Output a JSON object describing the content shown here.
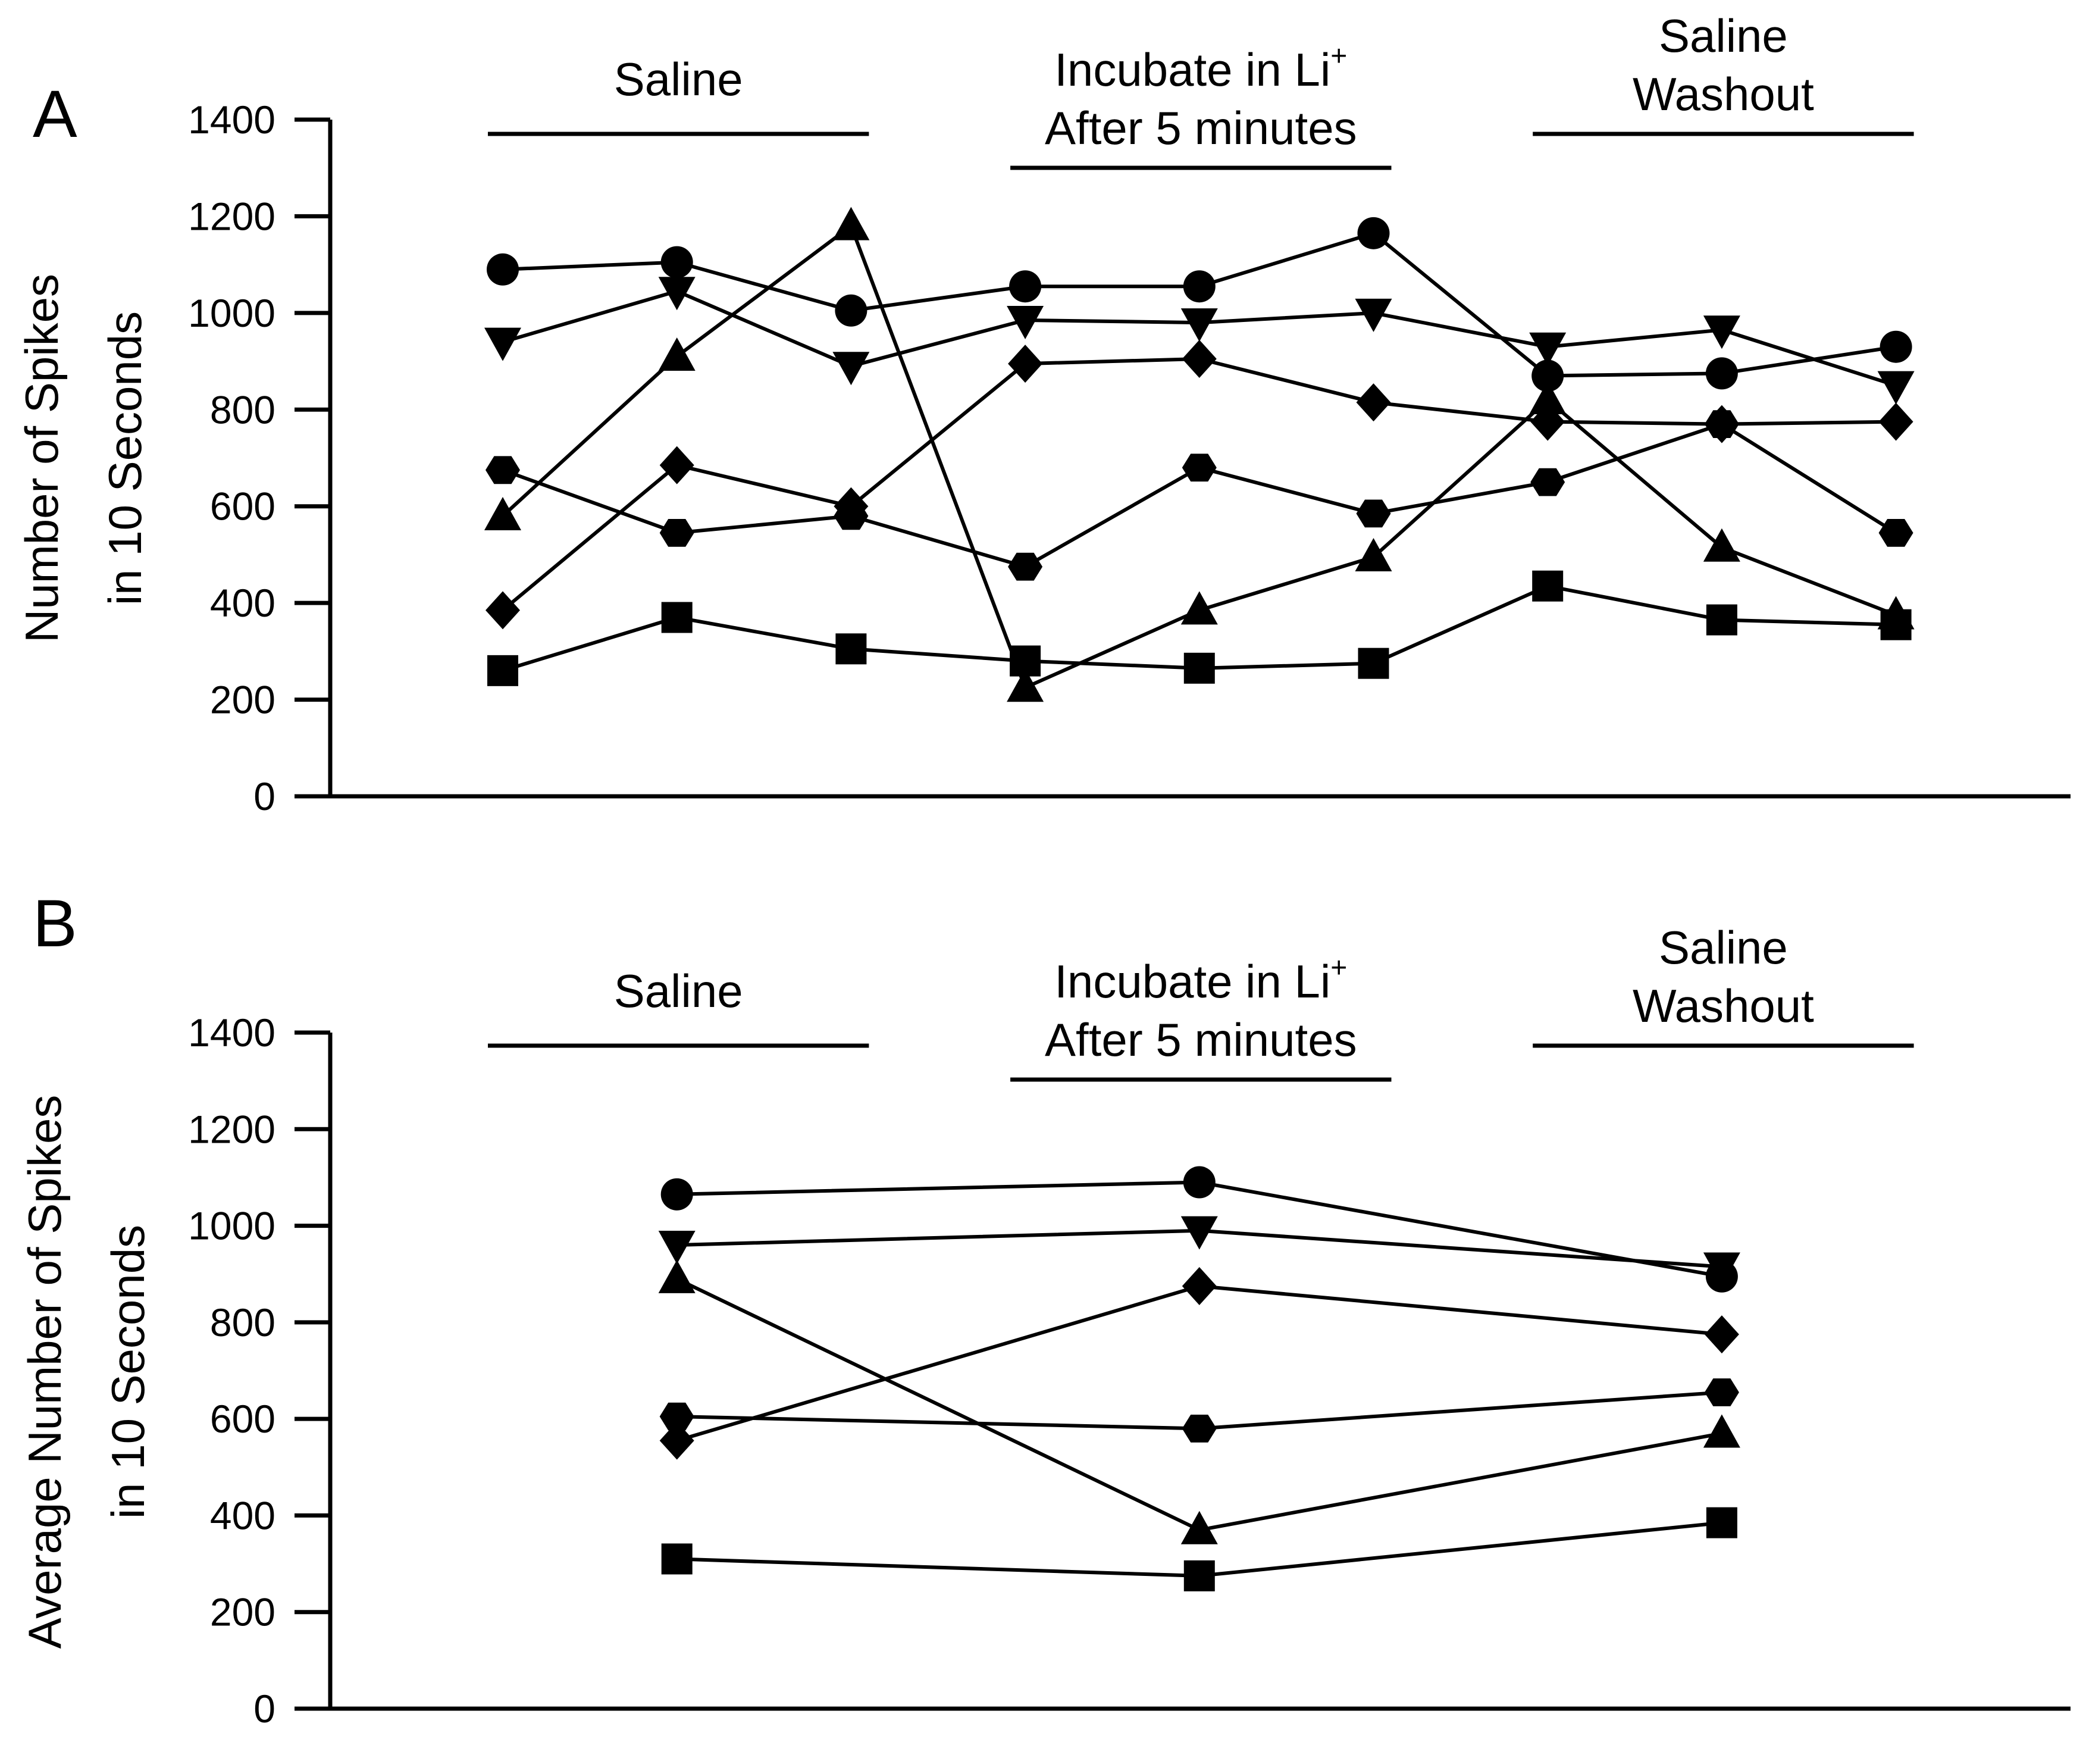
{
  "chart_data": [
    {
      "type": "line",
      "panel_label": "A",
      "ylabel_lines": [
        "Number of Spikes",
        "in 10 Seconds"
      ],
      "xlabel": "",
      "ylim": [
        0,
        1400
      ],
      "yticks": [
        0,
        200,
        400,
        600,
        800,
        1000,
        1200,
        1400
      ],
      "x": [
        1,
        2,
        3,
        4,
        5,
        6,
        7,
        8,
        9
      ],
      "periods": [
        {
          "lines": [
            "Saline"
          ],
          "from": 1,
          "to": 3
        },
        {
          "lines": [
            "Incubate in Li",
            "After 5 minutes"
          ],
          "superscript": "+",
          "from": 4,
          "to": 6
        },
        {
          "lines": [
            "Saline",
            "Washout"
          ],
          "from": 7,
          "to": 9
        }
      ],
      "series": [
        {
          "name": "circle",
          "marker": "circle",
          "values": [
            1090,
            1105,
            1005,
            1055,
            1055,
            1165,
            870,
            875,
            930
          ]
        },
        {
          "name": "triangle-down",
          "marker": "triangle-down",
          "values": [
            940,
            1045,
            890,
            985,
            980,
            1000,
            930,
            965,
            850
          ]
        },
        {
          "name": "triangle-up",
          "marker": "triangle-up",
          "values": [
            580,
            910,
            1180,
            225,
            385,
            495,
            820,
            515,
            375
          ]
        },
        {
          "name": "diamond",
          "marker": "diamond",
          "values": [
            385,
            685,
            600,
            895,
            905,
            815,
            775,
            770,
            775
          ]
        },
        {
          "name": "hexagon",
          "marker": "hexagon",
          "values": [
            675,
            545,
            580,
            475,
            680,
            585,
            650,
            770,
            545
          ]
        },
        {
          "name": "square",
          "marker": "square",
          "values": [
            260,
            370,
            305,
            280,
            265,
            275,
            435,
            365,
            355
          ]
        }
      ]
    },
    {
      "type": "line",
      "panel_label": "B",
      "ylabel_lines": [
        "Average Number of Spikes",
        "in 10 Seconds"
      ],
      "xlabel": "",
      "ylim": [
        0,
        1400
      ],
      "yticks": [
        0,
        200,
        400,
        600,
        800,
        1000,
        1200,
        1400
      ],
      "x": [
        2,
        5,
        8
      ],
      "periods": [
        {
          "lines": [
            "Saline"
          ],
          "from": 1,
          "to": 3
        },
        {
          "lines": [
            "Incubate in Li",
            "After 5 minutes"
          ],
          "superscript": "+",
          "from": 4,
          "to": 6
        },
        {
          "lines": [
            "Saline",
            "Washout"
          ],
          "from": 7,
          "to": 9
        }
      ],
      "series": [
        {
          "name": "circle",
          "marker": "circle",
          "values": [
            1065,
            1090,
            895
          ]
        },
        {
          "name": "triangle-down",
          "marker": "triangle-down",
          "values": [
            960,
            990,
            915
          ]
        },
        {
          "name": "triangle-up",
          "marker": "triangle-up",
          "values": [
            890,
            370,
            570
          ]
        },
        {
          "name": "diamond",
          "marker": "diamond",
          "values": [
            555,
            875,
            775
          ]
        },
        {
          "name": "hexagon",
          "marker": "hexagon",
          "values": [
            605,
            580,
            655
          ]
        },
        {
          "name": "square",
          "marker": "square",
          "values": [
            310,
            275,
            385
          ]
        }
      ]
    }
  ]
}
